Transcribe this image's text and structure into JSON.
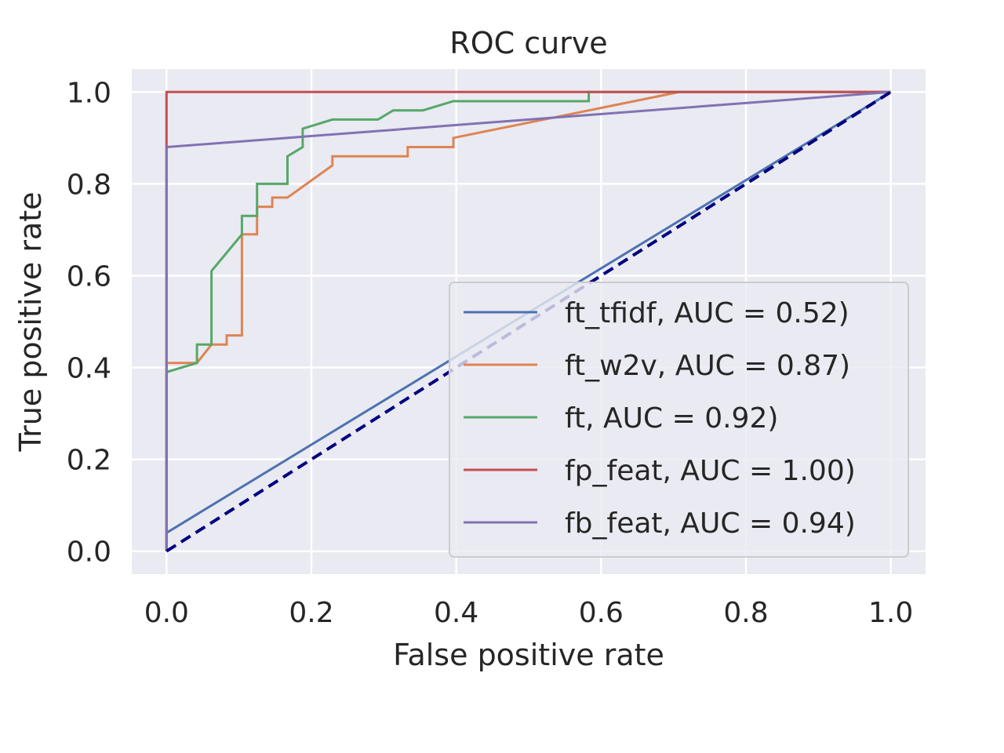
{
  "chart_data": {
    "type": "line",
    "title": "ROC curve",
    "xlabel": "False positive rate",
    "ylabel": "True positive rate",
    "xlim": [
      -0.048,
      1.048
    ],
    "ylim": [
      -0.05,
      1.05
    ],
    "xticks": [
      "0.0",
      "0.2",
      "0.4",
      "0.6",
      "0.8",
      "1.0"
    ],
    "yticks": [
      "0.0",
      "0.2",
      "0.4",
      "0.6",
      "0.8",
      "1.0"
    ],
    "grid": true,
    "legend_position": "lower-right",
    "reference_line": {
      "x": [
        0,
        1
      ],
      "y": [
        0,
        1
      ],
      "color": "#000080",
      "style": "dashed"
    },
    "series": [
      {
        "name": "ft_tfidf, AUC = 0.52)",
        "color": "#4c72b0",
        "x": [
          0,
          0,
          1
        ],
        "y": [
          0,
          0.04,
          1
        ]
      },
      {
        "name": "ft_w2v, AUC = 0.87)",
        "color": "#dd8452",
        "x": [
          0,
          0,
          0.042,
          0.062,
          0.083,
          0.083,
          0.104,
          0.104,
          0.125,
          0.125,
          0.146,
          0.146,
          0.167,
          0.229,
          0.229,
          0.333,
          0.333,
          0.396,
          0.396,
          0.708,
          1
        ],
        "y": [
          0,
          0.41,
          0.41,
          0.45,
          0.45,
          0.47,
          0.47,
          0.69,
          0.69,
          0.75,
          0.75,
          0.77,
          0.77,
          0.84,
          0.86,
          0.86,
          0.88,
          0.88,
          0.9,
          1,
          1
        ]
      },
      {
        "name": "ft, AUC = 0.92)",
        "color": "#55a868",
        "x": [
          0,
          0,
          0.042,
          0.042,
          0.062,
          0.062,
          0.104,
          0.104,
          0.125,
          0.125,
          0.167,
          0.167,
          0.188,
          0.188,
          0.229,
          0.292,
          0.313,
          0.354,
          0.396,
          0.583,
          0.583,
          1
        ],
        "y": [
          0,
          0.39,
          0.41,
          0.45,
          0.45,
          0.61,
          0.69,
          0.73,
          0.73,
          0.8,
          0.8,
          0.86,
          0.88,
          0.92,
          0.94,
          0.94,
          0.96,
          0.96,
          0.98,
          0.98,
          1,
          1
        ]
      },
      {
        "name": "fp_feat, AUC = 1.00)",
        "color": "#c44e52",
        "x": [
          0,
          0,
          1
        ],
        "y": [
          0,
          1,
          1
        ]
      },
      {
        "name": "fb_feat, AUC = 0.94)",
        "color": "#8172b3",
        "x": [
          0,
          0,
          1
        ],
        "y": [
          0,
          0.88,
          1
        ]
      }
    ]
  }
}
